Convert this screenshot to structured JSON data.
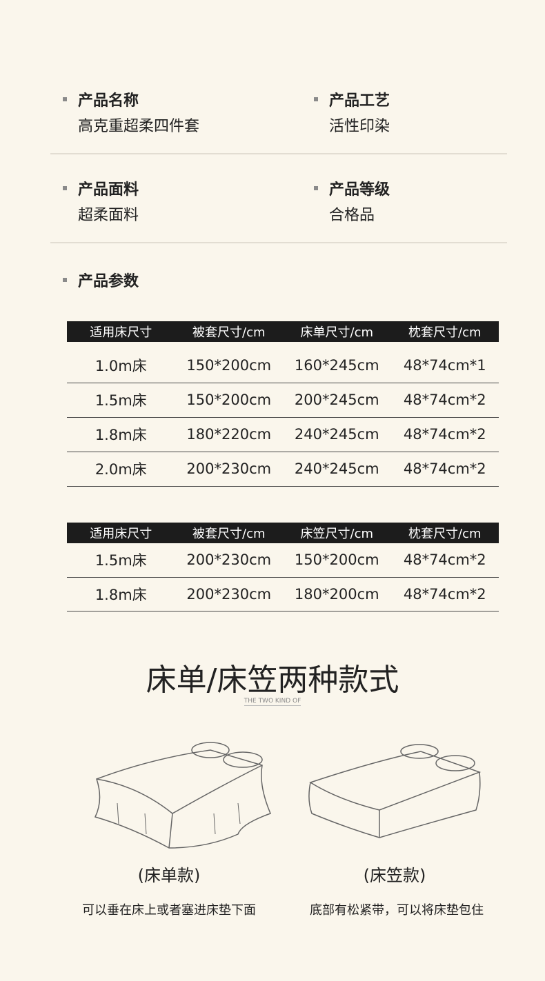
{
  "info": [
    {
      "title": "产品名称",
      "value": "高克重超柔四件套"
    },
    {
      "title": "产品工艺",
      "value": "活性印染"
    },
    {
      "title": "产品面料",
      "value": "超柔面料"
    },
    {
      "title": "产品等级",
      "value": "合格品"
    }
  ],
  "params_title": "产品参数",
  "table1": {
    "headers": [
      "适用床尺寸",
      "被套尺寸/cm",
      "床单尺寸/cm",
      "枕套尺寸/cm"
    ],
    "rows": [
      [
        "1.0m床",
        "150*200cm",
        "160*245cm",
        "48*74cm*1"
      ],
      [
        "1.5m床",
        "150*200cm",
        "200*245cm",
        "48*74cm*2"
      ],
      [
        "1.8m床",
        "180*220cm",
        "240*245cm",
        "48*74cm*2"
      ],
      [
        "2.0m床",
        "200*230cm",
        "240*245cm",
        "48*74cm*2"
      ]
    ]
  },
  "table2": {
    "headers": [
      "适用床尺寸",
      "被套尺寸/cm",
      "床笠尺寸/cm",
      "枕套尺寸/cm"
    ],
    "rows": [
      [
        "1.5m床",
        "200*230cm",
        "150*200cm",
        "48*74cm*2"
      ],
      [
        "1.8m床",
        "200*230cm",
        "180*200cm",
        "48*74cm*2"
      ]
    ]
  },
  "styles": {
    "title": "床单/床笠两种款式",
    "subtitle": "THE TWO KIND OF",
    "items": [
      {
        "label": "(床单款)",
        "desc": "可以垂在床上或者塞进床垫下面"
      },
      {
        "label": "(床笠款)",
        "desc": "底部有松紧带，可以将床垫包住"
      }
    ]
  }
}
